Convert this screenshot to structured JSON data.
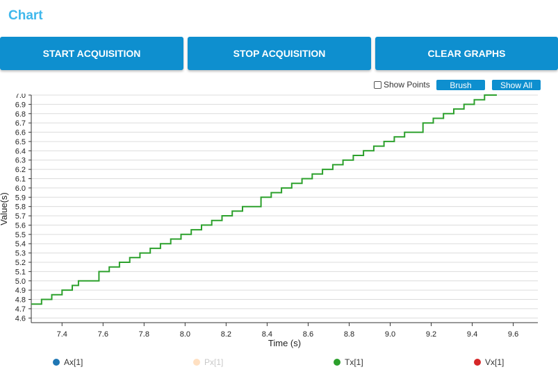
{
  "page": {
    "title": "Chart"
  },
  "buttons": {
    "start": "START ACQUISITION",
    "stop": "STOP ACQUISITION",
    "clear": "CLEAR GRAPHS"
  },
  "controls": {
    "show_points_label": "Show Points",
    "show_points_checked": false,
    "brush_label": "Brush",
    "show_all_label": "Show All"
  },
  "colors": {
    "accent": "#0e8fcf",
    "title": "#3fb8ec",
    "Ax": "#1f77b4",
    "Px": "#ffe0c2",
    "Tx": "#2ca02c",
    "Vx": "#d62728"
  },
  "chart_data": {
    "type": "line",
    "xlabel": "Time (s)",
    "ylabel": "Value(s)",
    "xlim": [
      7.25,
      9.72
    ],
    "ylim": [
      4.55,
      7.0
    ],
    "xticks": [
      7.4,
      7.6,
      7.8,
      8.0,
      8.2,
      8.4,
      8.6,
      8.8,
      9.0,
      9.2,
      9.4,
      9.6
    ],
    "yticks": [
      4.6,
      4.7,
      4.8,
      4.9,
      5.0,
      5.1,
      5.2,
      5.3,
      5.4,
      5.5,
      5.6,
      5.7,
      5.8,
      5.9,
      6.0,
      6.1,
      6.2,
      6.3,
      6.4,
      6.5,
      6.6,
      6.7,
      6.8,
      6.9,
      7.0
    ],
    "grid": "horizontal",
    "legend_position": "bottom",
    "legend": [
      {
        "name": "Ax[1]",
        "color": "#1f77b4",
        "active": true
      },
      {
        "name": "Px[1]",
        "color": "#ffe0c2",
        "active": false
      },
      {
        "name": "Tx[1]",
        "color": "#2ca02c",
        "active": true
      },
      {
        "name": "Vx[1]",
        "color": "#d62728",
        "active": true
      }
    ],
    "series": [
      {
        "name": "Tx[1]",
        "color": "#2ca02c",
        "step": true,
        "points": [
          [
            7.25,
            4.75
          ],
          [
            7.3,
            4.8
          ],
          [
            7.35,
            4.85
          ],
          [
            7.4,
            4.9
          ],
          [
            7.45,
            4.95
          ],
          [
            7.48,
            5.0
          ],
          [
            7.58,
            5.1
          ],
          [
            7.63,
            5.15
          ],
          [
            7.68,
            5.2
          ],
          [
            7.73,
            5.25
          ],
          [
            7.78,
            5.3
          ],
          [
            7.83,
            5.35
          ],
          [
            7.88,
            5.4
          ],
          [
            7.93,
            5.45
          ],
          [
            7.98,
            5.5
          ],
          [
            8.03,
            5.55
          ],
          [
            8.08,
            5.6
          ],
          [
            8.13,
            5.65
          ],
          [
            8.18,
            5.7
          ],
          [
            8.23,
            5.75
          ],
          [
            8.28,
            5.8
          ],
          [
            8.37,
            5.9
          ],
          [
            8.42,
            5.95
          ],
          [
            8.47,
            6.0
          ],
          [
            8.52,
            6.05
          ],
          [
            8.57,
            6.1
          ],
          [
            8.62,
            6.15
          ],
          [
            8.67,
            6.2
          ],
          [
            8.72,
            6.25
          ],
          [
            8.77,
            6.3
          ],
          [
            8.82,
            6.35
          ],
          [
            8.87,
            6.4
          ],
          [
            8.92,
            6.45
          ],
          [
            8.97,
            6.5
          ],
          [
            9.02,
            6.55
          ],
          [
            9.07,
            6.6
          ],
          [
            9.16,
            6.7
          ],
          [
            9.21,
            6.75
          ],
          [
            9.26,
            6.8
          ],
          [
            9.31,
            6.85
          ],
          [
            9.36,
            6.9
          ],
          [
            9.41,
            6.95
          ],
          [
            9.46,
            7.0
          ],
          [
            9.52,
            7.0
          ]
        ]
      }
    ]
  }
}
